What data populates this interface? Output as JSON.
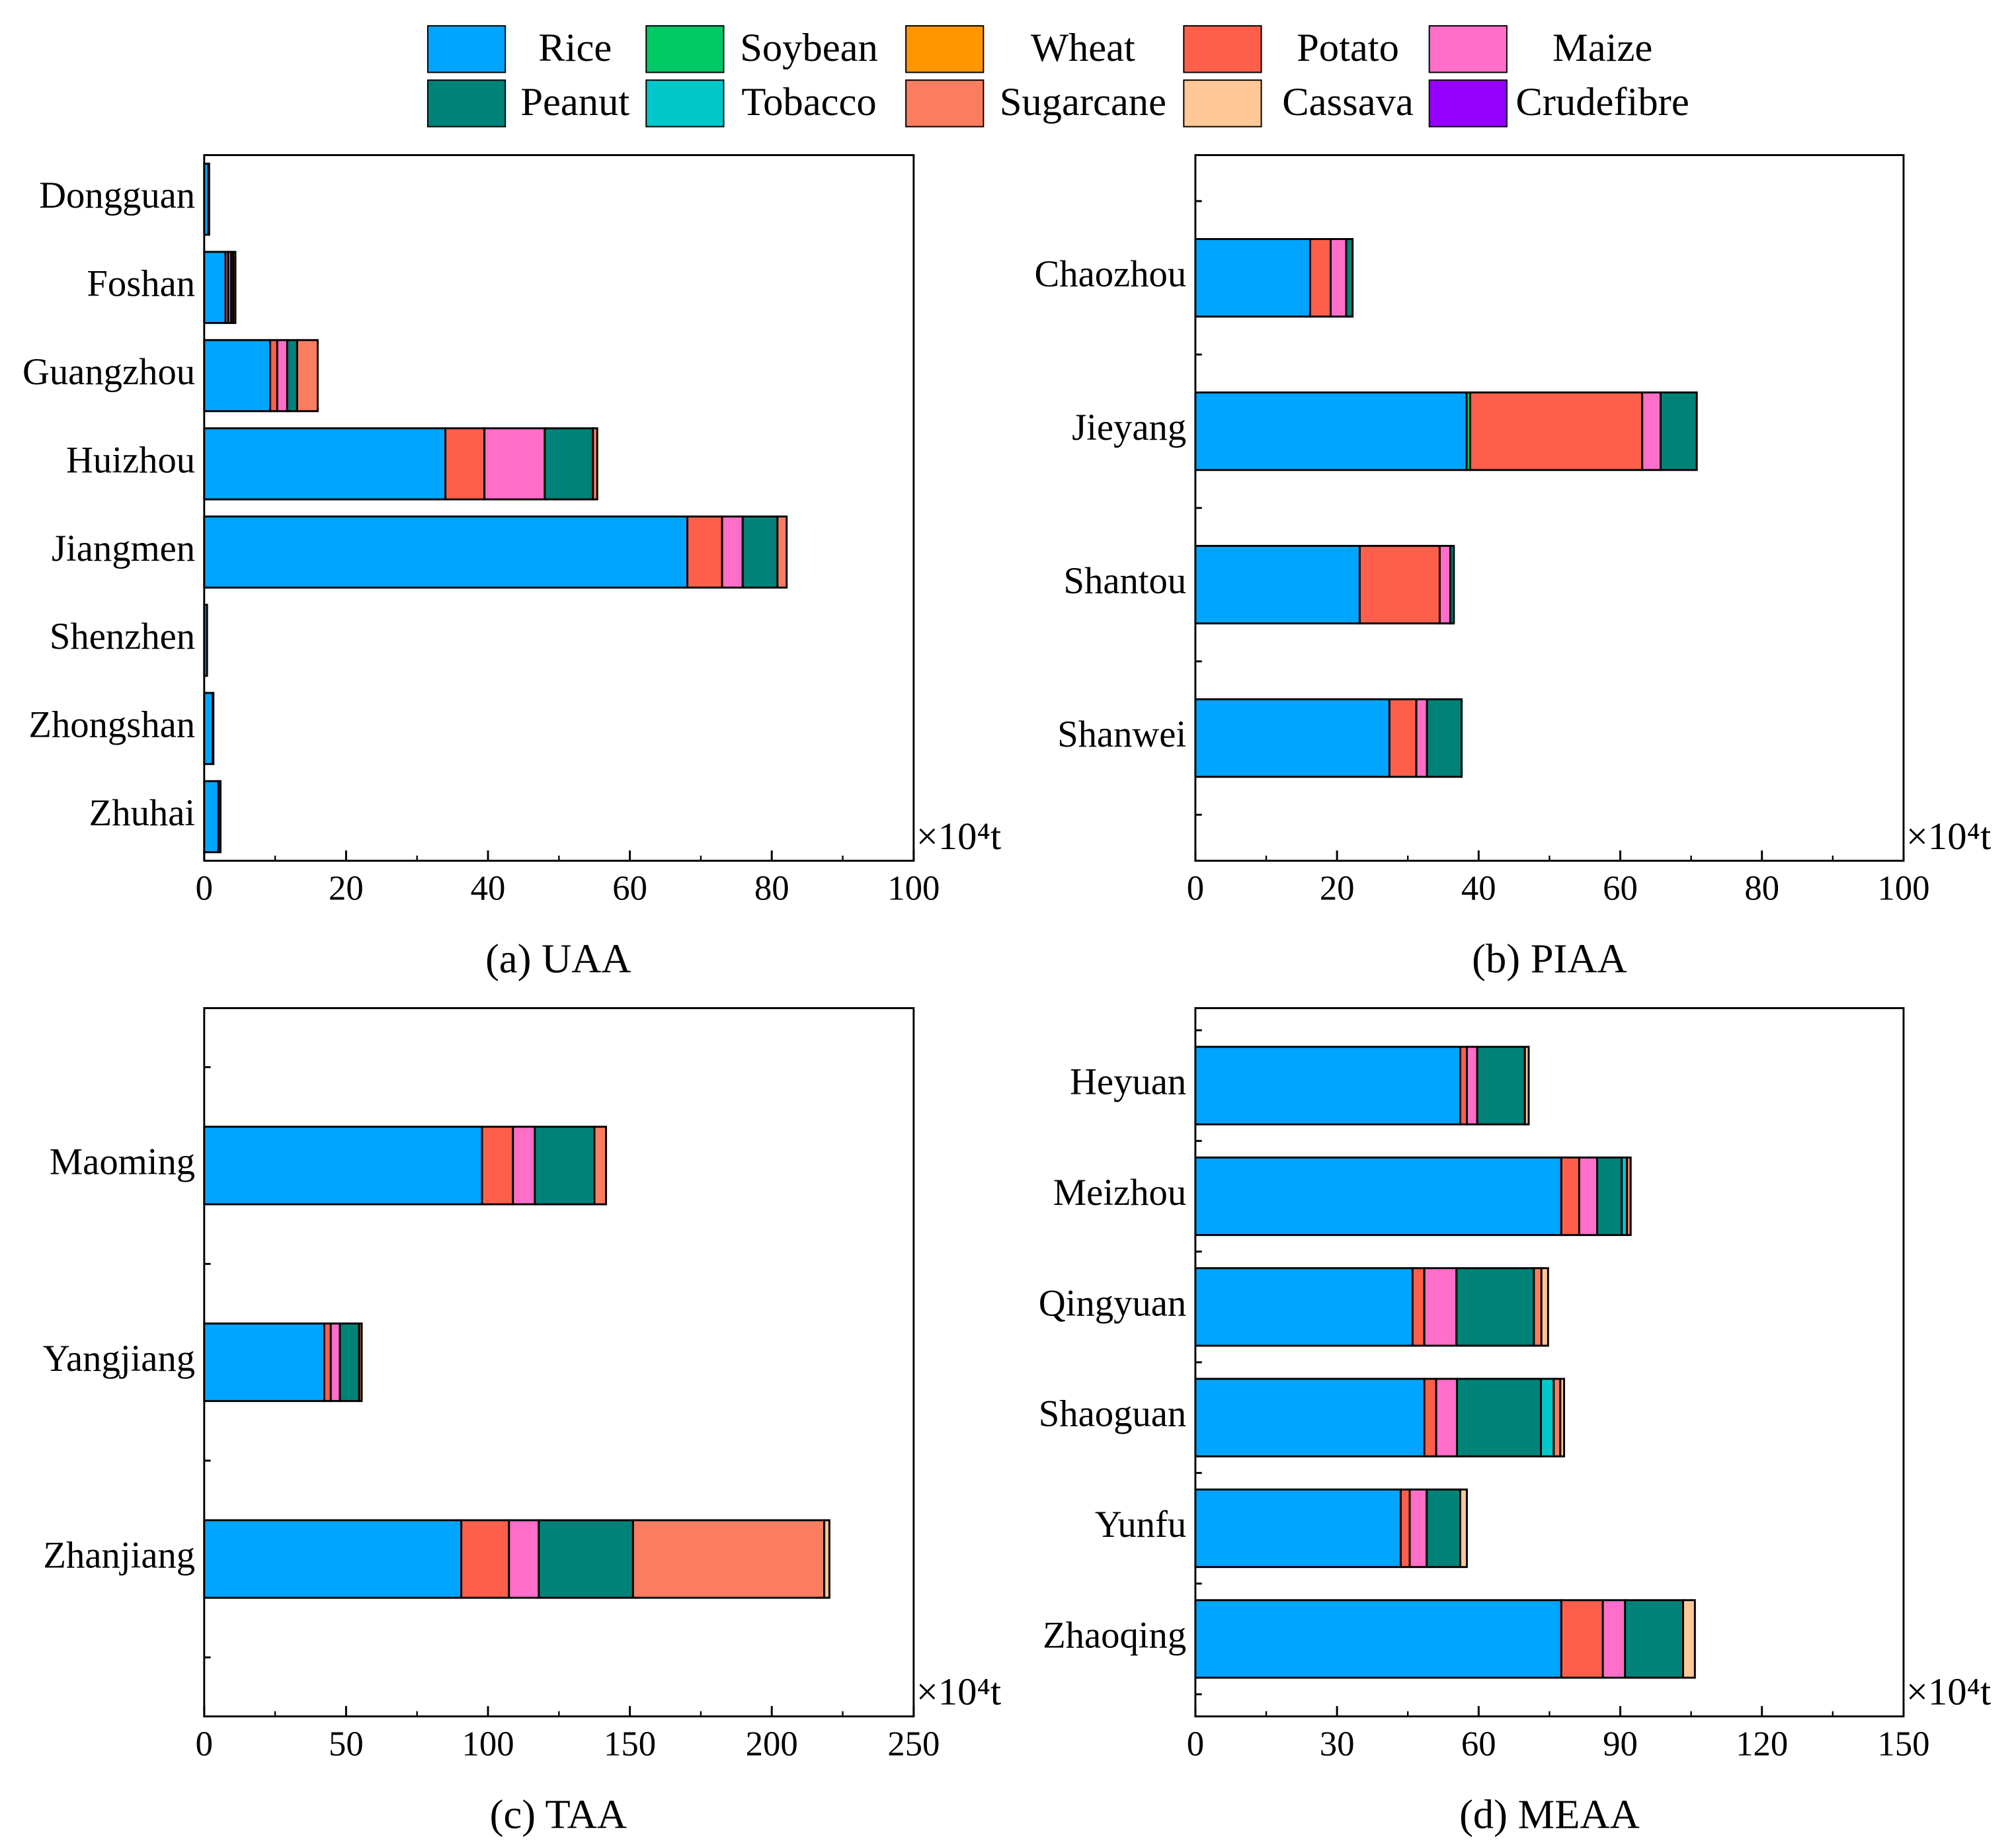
{
  "chart_data": [
    {
      "type": "bar",
      "orientation": "horizontal",
      "title": "(a)  UAA",
      "unit": "×10⁴t",
      "categories": [
        "Dongguan",
        "Foshan",
        "Guangzhou",
        "Huizhou",
        "Jiangmen",
        "Shenzhen",
        "Zhongshan",
        "Zhuhai"
      ],
      "xlim": [
        0,
        100
      ],
      "xticks": [
        0,
        20,
        40,
        60,
        80,
        100
      ],
      "series": [
        {
          "name": "Rice",
          "color": "#00a5ff",
          "values": [
            0.6,
            3.0,
            9.3,
            34,
            68.1,
            0.4,
            1.2,
            2.0
          ]
        },
        {
          "name": "Soybean",
          "color": "#00c864",
          "values": [
            0,
            0,
            0,
            0,
            0,
            0,
            0,
            0
          ]
        },
        {
          "name": "Wheat",
          "color": "#ff9600",
          "values": [
            0,
            0,
            0,
            0,
            0,
            0,
            0,
            0
          ]
        },
        {
          "name": "Potato",
          "color": "#fe5f4b",
          "values": [
            0,
            0.4,
            1.0,
            5.5,
            4.9,
            0,
            0,
            0
          ]
        },
        {
          "name": "Maize",
          "color": "#ff6ec8",
          "values": [
            0,
            0.4,
            1.4,
            8.5,
            2.9,
            0,
            0,
            0
          ]
        },
        {
          "name": "Peanut",
          "color": "#008278",
          "values": [
            0.1,
            0.3,
            1.4,
            6.8,
            4.9,
            0,
            0.1,
            0.3
          ]
        },
        {
          "name": "Tobacco",
          "color": "#00c8c8",
          "values": [
            0,
            0,
            0,
            0,
            0,
            0,
            0,
            0
          ]
        },
        {
          "name": "Sugarcane",
          "color": "#fa7d60",
          "values": [
            0,
            0.3,
            2.9,
            0.6,
            1.3,
            0,
            0,
            0
          ]
        },
        {
          "name": "Cassava",
          "color": "#ffc896",
          "values": [
            0,
            0,
            0,
            0,
            0,
            0,
            0,
            0
          ]
        },
        {
          "name": "Crudefibre",
          "color": "#9600ff",
          "values": [
            0,
            0,
            0,
            0,
            0,
            0,
            0,
            0
          ]
        }
      ]
    },
    {
      "type": "bar",
      "orientation": "horizontal",
      "title": "(b) PIAA",
      "unit": "×10⁴t",
      "categories": [
        "Chaozhou",
        "Jieyang",
        "Shantou",
        "Shanwei"
      ],
      "xlim": [
        0,
        100
      ],
      "xticks": [
        0,
        20,
        40,
        60,
        80,
        100
      ],
      "series": [
        {
          "values": [
            16.2,
            38.3,
            23.2,
            27.4
          ]
        },
        {
          "values": [
            0,
            0.5,
            0,
            0
          ]
        },
        {
          "values": [
            0,
            0,
            0,
            0
          ]
        },
        {
          "values": [
            2.9,
            24.3,
            11.3,
            3.8
          ]
        },
        {
          "values": [
            2.2,
            2.6,
            1.5,
            1.5
          ]
        },
        {
          "values": [
            0.9,
            5.1,
            0.5,
            4.9
          ]
        },
        {
          "values": [
            0,
            0,
            0,
            0
          ]
        },
        {
          "values": [
            0,
            0,
            0,
            0
          ]
        },
        {
          "values": [
            0,
            0,
            0,
            0
          ]
        },
        {
          "values": [
            0,
            0,
            0,
            0
          ]
        }
      ]
    },
    {
      "type": "bar",
      "orientation": "horizontal",
      "title": "(c) TAA",
      "unit": "×10⁴t",
      "categories": [
        "Maoming",
        "Yangjiang",
        "Zhanjiang"
      ],
      "xlim": [
        0,
        250
      ],
      "xticks": [
        0,
        50,
        100,
        150,
        200,
        250
      ],
      "series": [
        {
          "values": [
            97.9,
            42.3,
            90.6
          ]
        },
        {
          "values": [
            0,
            0,
            0
          ]
        },
        {
          "values": [
            0,
            0,
            0
          ]
        },
        {
          "values": [
            10.9,
            2.3,
            16.8
          ]
        },
        {
          "values": [
            7.7,
            3.2,
            10.5
          ]
        },
        {
          "values": [
            21,
            6.8,
            33.2
          ]
        },
        {
          "values": [
            0,
            0,
            0
          ]
        },
        {
          "values": [
            4.1,
            0.9,
            67.4
          ]
        },
        {
          "values": [
            0,
            0,
            1.8
          ]
        },
        {
          "values": [
            0,
            0,
            0
          ]
        }
      ]
    },
    {
      "type": "bar",
      "orientation": "horizontal",
      "title": "(d) MEAA",
      "unit": "×10⁴t",
      "categories": [
        "Heyuan",
        "Meizhou",
        "Qingyuan",
        "Shaoguan",
        "Yunfu",
        "Zhaoqing"
      ],
      "xlim": [
        0,
        150
      ],
      "xticks": [
        0,
        30,
        60,
        90,
        120,
        150
      ],
      "series": [
        {
          "values": [
            56.1,
            77.5,
            46,
            48.5,
            43.5,
            77.5
          ]
        },
        {
          "values": [
            0,
            0,
            0,
            0,
            0,
            0
          ]
        },
        {
          "values": [
            0,
            0,
            0,
            0,
            0,
            0
          ]
        },
        {
          "values": [
            1.4,
            3.8,
            2.5,
            2.5,
            1.9,
            8.8
          ]
        },
        {
          "values": [
            2.2,
            3.8,
            6.8,
            4.4,
            3.6,
            4.7
          ]
        },
        {
          "values": [
            10.1,
            5.2,
            16.4,
            17.8,
            7.1,
            12.3
          ]
        },
        {
          "values": [
            0,
            1.1,
            0,
            2.7,
            0,
            0
          ]
        },
        {
          "values": [
            0,
            0.8,
            1.6,
            1.4,
            0,
            0
          ]
        },
        {
          "values": [
            0.8,
            0,
            1.4,
            0.8,
            1.4,
            2.5
          ]
        },
        {
          "values": [
            0,
            0,
            0,
            0,
            0,
            0
          ]
        }
      ]
    }
  ]
}
